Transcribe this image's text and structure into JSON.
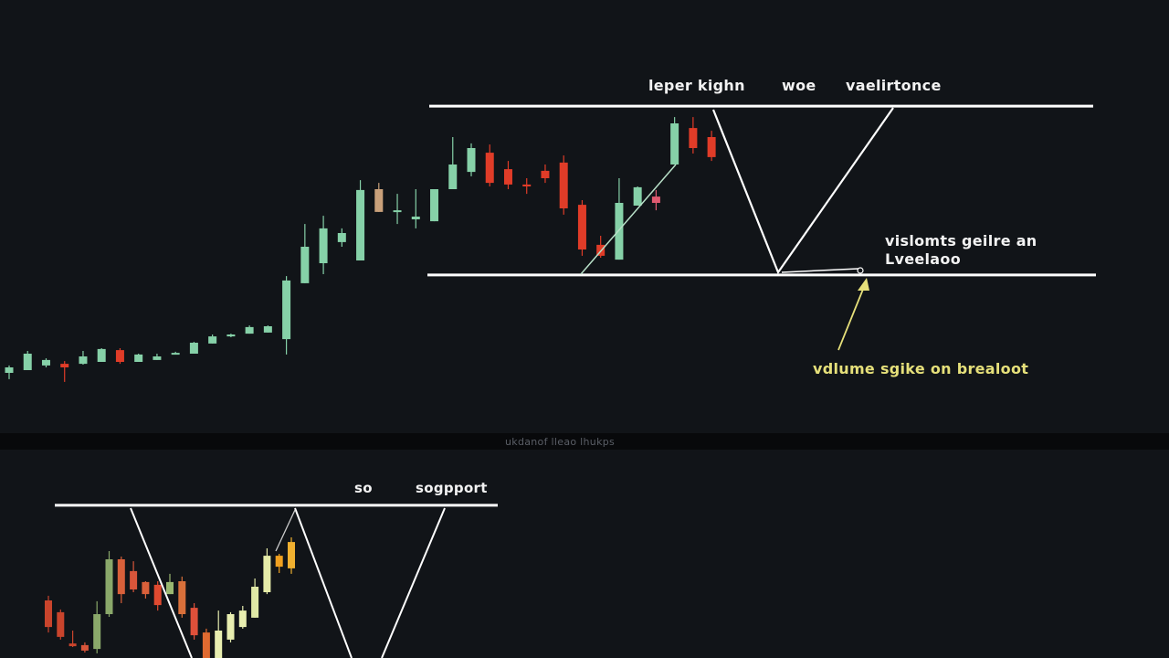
{
  "chart_data": [
    {
      "type": "candlestick",
      "panel": "top",
      "colors": {
        "up": "#86d1a8",
        "down": "#e03c28",
        "background": "#111418",
        "lines": "#ffffff",
        "callout": "#e6e07a"
      },
      "levels": {
        "resistance": 101.3,
        "support": 39.7
      },
      "annotations": {
        "top_labels": [
          "leper kighn",
          "woe",
          "vaelirtonce"
        ],
        "right_label_line1": "vislomts geilre an",
        "right_label_line2": "Lveelaoo",
        "callout": "vdlume sgike on brealoot"
      },
      "candles": [
        {
          "o": 4,
          "h": 6.7,
          "l": 1.7,
          "c": 6
        },
        {
          "o": 5,
          "h": 12,
          "l": 5,
          "c": 11
        },
        {
          "o": 6.7,
          "h": 9.3,
          "l": 6,
          "c": 8.7
        },
        {
          "o": 7.3,
          "h": 8.3,
          "l": 0.7,
          "c": 6
        },
        {
          "o": 7.3,
          "h": 12,
          "l": 7,
          "c": 10
        },
        {
          "o": 8,
          "h": 13,
          "l": 8,
          "c": 12.7
        },
        {
          "o": 12.3,
          "h": 13,
          "l": 7.3,
          "c": 8
        },
        {
          "o": 8,
          "h": 11,
          "l": 8,
          "c": 10.7
        },
        {
          "o": 8.7,
          "h": 11,
          "l": 8.7,
          "c": 10
        },
        {
          "o": 11,
          "h": 11.7,
          "l": 10.7,
          "c": 11.3
        },
        {
          "o": 11,
          "h": 15.3,
          "l": 11,
          "c": 15
        },
        {
          "o": 14.7,
          "h": 18,
          "l": 14.7,
          "c": 17.3
        },
        {
          "o": 17.3,
          "h": 18.3,
          "l": 17,
          "c": 18
        },
        {
          "o": 18.3,
          "h": 21.3,
          "l": 18.3,
          "c": 20.7
        },
        {
          "o": 18.7,
          "h": 21.3,
          "l": 18.7,
          "c": 21
        },
        {
          "o": 16.3,
          "h": 39.3,
          "l": 10.7,
          "c": 37.7
        },
        {
          "o": 36.7,
          "h": 58.3,
          "l": 36.7,
          "c": 50
        },
        {
          "o": 44,
          "h": 61.3,
          "l": 40,
          "c": 56.7
        },
        {
          "o": 51.7,
          "h": 56.7,
          "l": 50,
          "c": 55
        },
        {
          "o": 45,
          "h": 74.3,
          "l": 45,
          "c": 70.7
        },
        {
          "o": 71,
          "h": 73.3,
          "l": 62.7,
          "c": 62.7,
          "color": "#c9a07a"
        },
        {
          "o": 63,
          "h": 69.3,
          "l": 58.3,
          "c": 63.3
        },
        {
          "o": 60,
          "h": 71,
          "l": 56.7,
          "c": 61
        },
        {
          "o": 59.3,
          "h": 71,
          "l": 59.3,
          "c": 71
        },
        {
          "o": 71,
          "h": 90,
          "l": 71,
          "c": 80
        },
        {
          "o": 77.3,
          "h": 87.7,
          "l": 75.7,
          "c": 86
        },
        {
          "o": 84.3,
          "h": 87.3,
          "l": 72,
          "c": 73.3
        },
        {
          "o": 78.3,
          "h": 81.3,
          "l": 71,
          "c": 72.7
        },
        {
          "o": 72.7,
          "h": 75,
          "l": 69.3,
          "c": 72
        },
        {
          "o": 77.7,
          "h": 80,
          "l": 73.3,
          "c": 75
        },
        {
          "o": 80.7,
          "h": 83.3,
          "l": 61.7,
          "c": 64
        },
        {
          "o": 65.3,
          "h": 67,
          "l": 46.7,
          "c": 49
        },
        {
          "o": 50.7,
          "h": 54,
          "l": 46,
          "c": 46.7
        },
        {
          "o": 45.3,
          "h": 75,
          "l": 45.3,
          "c": 66
        },
        {
          "o": 65,
          "h": 72,
          "l": 65,
          "c": 71.7
        },
        {
          "o": 68.3,
          "h": 70.7,
          "l": 63.3,
          "c": 66,
          "color": "#e05a70"
        },
        {
          "o": 80,
          "h": 97.3,
          "l": 80,
          "c": 95
        },
        {
          "o": 93.3,
          "h": 97.3,
          "l": 84,
          "c": 86
        },
        {
          "o": 90,
          "h": 92.3,
          "l": 81.3,
          "c": 82.7
        }
      ]
    },
    {
      "type": "candlestick",
      "panel": "bottom",
      "separator_text": "ukdanof lleao lhukps",
      "levels": {
        "support": 55.7
      },
      "annotations": {
        "top_labels": [
          "so",
          "sogpport"
        ]
      },
      "candles": [
        {
          "o": 21,
          "h": 22.7,
          "l": 9.3,
          "c": 11.3,
          "color": "#c9442c"
        },
        {
          "o": 16.7,
          "h": 17.7,
          "l": 6.7,
          "c": 7.7,
          "color": "#c9442c"
        },
        {
          "o": 5.3,
          "h": 10,
          "l": 4,
          "c": 4.3,
          "color": "#c9442c"
        },
        {
          "o": 4.7,
          "h": 5.7,
          "l": 2,
          "c": 2.7,
          "color": "#d9553a"
        },
        {
          "o": 3.3,
          "h": 20.7,
          "l": 1.7,
          "c": 16,
          "color": "#8aa86a"
        },
        {
          "o": 16,
          "h": 39,
          "l": 15,
          "c": 36,
          "color": "#8aa86a"
        },
        {
          "o": 36,
          "h": 37,
          "l": 20,
          "c": 23.3,
          "color": "#d9603a"
        },
        {
          "o": 31.7,
          "h": 35.3,
          "l": 24,
          "c": 25,
          "color": "#d9553a"
        },
        {
          "o": 27.7,
          "h": 28,
          "l": 21.7,
          "c": 23.3,
          "color": "#d9603a"
        },
        {
          "o": 26.7,
          "h": 28,
          "l": 17.3,
          "c": 19.3,
          "color": "#e04a30"
        },
        {
          "o": 23.3,
          "h": 30.7,
          "l": 23.3,
          "c": 27.7,
          "color": "#9ab870"
        },
        {
          "o": 28,
          "h": 29.7,
          "l": 14.7,
          "c": 16,
          "color": "#d9703a"
        },
        {
          "o": 18.3,
          "h": 20,
          "l": 6.7,
          "c": 8.3,
          "color": "#e0503a"
        },
        {
          "o": 9.3,
          "h": 10.7,
          "l": 0,
          "c": 0,
          "color": "#e06a30"
        },
        {
          "o": 0,
          "h": 17.3,
          "l": 0,
          "c": 10,
          "color": "#e8eeb0"
        },
        {
          "o": 6.7,
          "h": 16.7,
          "l": 5.7,
          "c": 16,
          "color": "#e8eeb0"
        },
        {
          "o": 11.3,
          "h": 19,
          "l": 10.7,
          "c": 17.3,
          "color": "#e8eeb0"
        },
        {
          "o": 14.7,
          "h": 29,
          "l": 14.7,
          "c": 26,
          "color": "#dfe8a6"
        },
        {
          "o": 24,
          "h": 40,
          "l": 23.3,
          "c": 37.3,
          "color": "#e6eca8"
        },
        {
          "o": 37.3,
          "h": 38,
          "l": 31,
          "c": 33.3,
          "color": "#f0a020"
        },
        {
          "o": 32.7,
          "h": 44,
          "l": 30.7,
          "c": 42.3,
          "color": "#f0b030"
        }
      ]
    }
  ]
}
